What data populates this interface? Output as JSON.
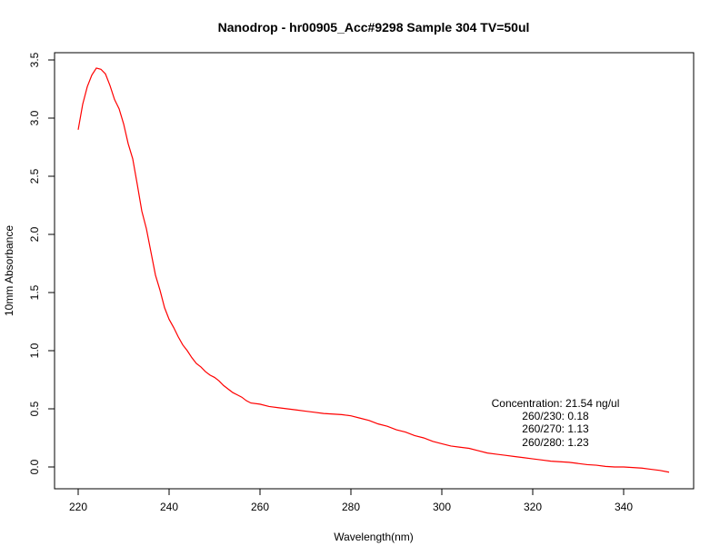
{
  "chart_data": {
    "type": "line",
    "title": "Nanodrop - hr00905_Acc#9298  Sample 304  TV=50ul",
    "xlabel": "Wavelength(nm)",
    "ylabel": "10mm Absorbance",
    "xlim": [
      220,
      350
    ],
    "ylim": [
      -0.05,
      3.5
    ],
    "xticks": [
      220,
      240,
      260,
      280,
      300,
      320,
      340
    ],
    "xtick_labels": [
      "220",
      "240",
      "260",
      "280",
      "300",
      "320",
      "340"
    ],
    "yticks": [
      0.0,
      0.5,
      1.0,
      1.5,
      2.0,
      2.5,
      3.0,
      3.5
    ],
    "ytick_labels": [
      "0.0",
      "0.5",
      "1.0",
      "1.5",
      "2.0",
      "2.5",
      "3.0",
      "3.5"
    ],
    "grid": false,
    "series": [
      {
        "color": "#ff0000",
        "x": [
          220,
          221,
          222,
          223,
          224,
          225,
          226,
          227,
          228,
          229,
          230,
          231,
          232,
          233,
          234,
          235,
          236,
          237,
          238,
          239,
          240,
          241,
          242,
          243,
          244,
          245,
          246,
          247,
          248,
          249,
          250,
          251,
          252,
          253,
          254,
          255,
          256,
          257,
          258,
          260,
          262,
          264,
          266,
          268,
          270,
          272,
          274,
          276,
          278,
          280,
          282,
          284,
          286,
          288,
          290,
          292,
          294,
          296,
          298,
          300,
          302,
          304,
          306,
          308,
          310,
          312,
          314,
          316,
          318,
          320,
          322,
          324,
          326,
          328,
          330,
          332,
          334,
          336,
          338,
          340,
          342,
          344,
          346,
          348,
          350
        ],
        "values": [
          2.9,
          3.12,
          3.27,
          3.37,
          3.43,
          3.42,
          3.38,
          3.28,
          3.16,
          3.08,
          2.95,
          2.78,
          2.65,
          2.43,
          2.2,
          2.05,
          1.85,
          1.65,
          1.52,
          1.37,
          1.27,
          1.2,
          1.12,
          1.05,
          1.0,
          0.94,
          0.89,
          0.86,
          0.82,
          0.79,
          0.77,
          0.74,
          0.7,
          0.67,
          0.64,
          0.62,
          0.6,
          0.57,
          0.55,
          0.54,
          0.52,
          0.51,
          0.5,
          0.49,
          0.48,
          0.47,
          0.46,
          0.455,
          0.45,
          0.44,
          0.42,
          0.4,
          0.37,
          0.35,
          0.32,
          0.3,
          0.27,
          0.25,
          0.22,
          0.2,
          0.18,
          0.17,
          0.16,
          0.14,
          0.12,
          0.11,
          0.1,
          0.09,
          0.08,
          0.07,
          0.06,
          0.05,
          0.045,
          0.04,
          0.03,
          0.02,
          0.015,
          0.005,
          0.0,
          0.0,
          -0.005,
          -0.01,
          -0.02,
          -0.03,
          -0.045
        ]
      }
    ],
    "annotations": [
      "Concentration: 21.54 ng/ul",
      "260/230: 0.18",
      "260/270: 1.13",
      "260/280: 1.23"
    ]
  }
}
